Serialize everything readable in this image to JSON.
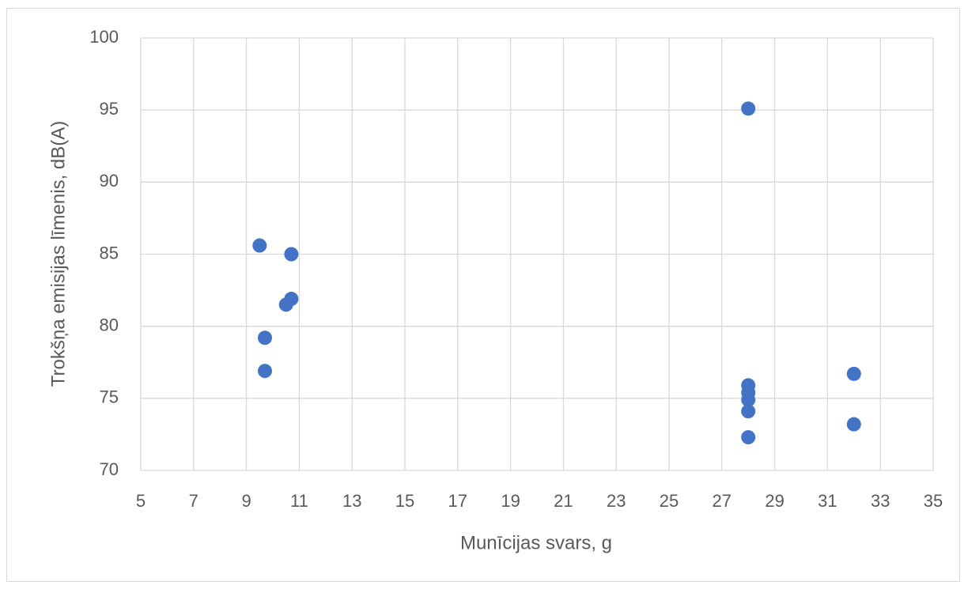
{
  "chart_data": {
    "type": "scatter",
    "xlabel": "Munīcijas svars, g",
    "ylabel": "Trokšņa emisijas līmenis, dB(A)",
    "color": "#4472c4",
    "x": [
      9.5,
      10.7,
      10.5,
      10.7,
      9.7,
      9.7,
      28,
      28,
      28,
      28,
      28,
      28,
      32,
      32
    ],
    "values": [
      85.6,
      85.0,
      81.5,
      81.9,
      79.2,
      76.9,
      95.1,
      75.9,
      75.4,
      74.9,
      74.1,
      72.3,
      76.7,
      73.2
    ],
    "xlim": [
      5,
      35
    ],
    "xticks": [
      5,
      7,
      9,
      11,
      13,
      15,
      17,
      19,
      21,
      23,
      25,
      27,
      29,
      31,
      33,
      35
    ],
    "ylim": [
      70,
      100
    ],
    "yticks": [
      70,
      75,
      80,
      85,
      90,
      95,
      100
    ],
    "grid": true
  }
}
